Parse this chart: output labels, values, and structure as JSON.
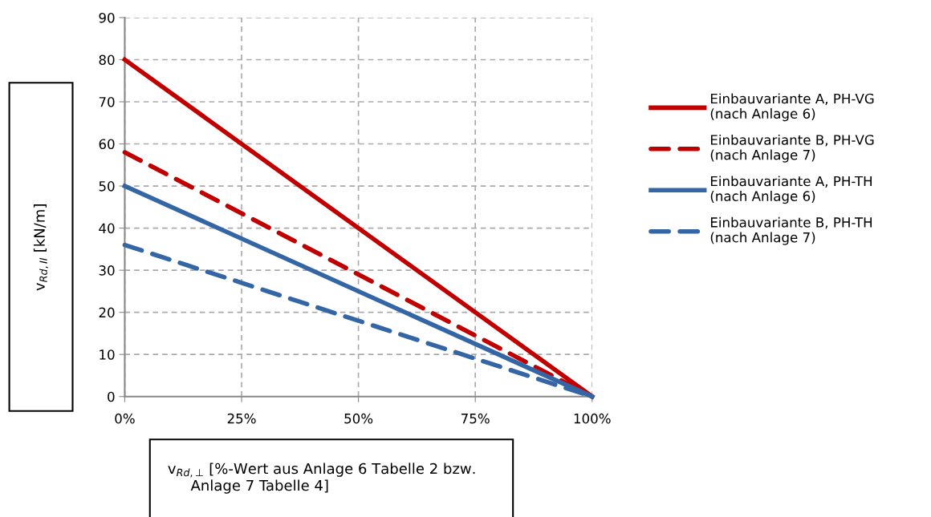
{
  "chart_data": {
    "type": "line",
    "xlabel": "v$_{Rd,⊥}$ [%-Wert aus Anlage 6 Tabelle 2 bzw.\n     Anlage 7 Tabelle 4]",
    "ylabel": "v$_{Rd,II}$ [kN/m]",
    "x": [
      0,
      100
    ],
    "series": [
      {
        "name": "Einbauvariante A, PH-VG\n(nach Anlage 6)",
        "color": "#c00000",
        "line_style": "solid",
        "values": [
          80,
          0
        ]
      },
      {
        "name": "Einbauvariante B, PH-VG\n(nach Anlage 7)",
        "color": "#c00000",
        "line_style": "dashed",
        "values": [
          58,
          0
        ]
      },
      {
        "name": "Einbauvariante A, PH-TH\n(nach Anlage 6)",
        "color": "#3465a4",
        "line_style": "solid",
        "values": [
          50,
          0
        ]
      },
      {
        "name": "Einbauvariante B, PH-TH\n(nach Anlage 7)",
        "color": "#3465a4",
        "line_style": "dashed",
        "values": [
          36,
          0
        ]
      }
    ],
    "xlim": [
      0,
      100
    ],
    "ylim": [
      0,
      90
    ],
    "xticks": [
      {
        "value": 0,
        "label": "0%"
      },
      {
        "value": 25,
        "label": "25%"
      },
      {
        "value": 50,
        "label": "50%"
      },
      {
        "value": 75,
        "label": "75%"
      },
      {
        "value": 100,
        "label": "100%"
      }
    ],
    "yticks": [
      0,
      10,
      20,
      30,
      40,
      50,
      60,
      70,
      80,
      90
    ],
    "grid": true,
    "legend": "right",
    "marker": "none"
  }
}
